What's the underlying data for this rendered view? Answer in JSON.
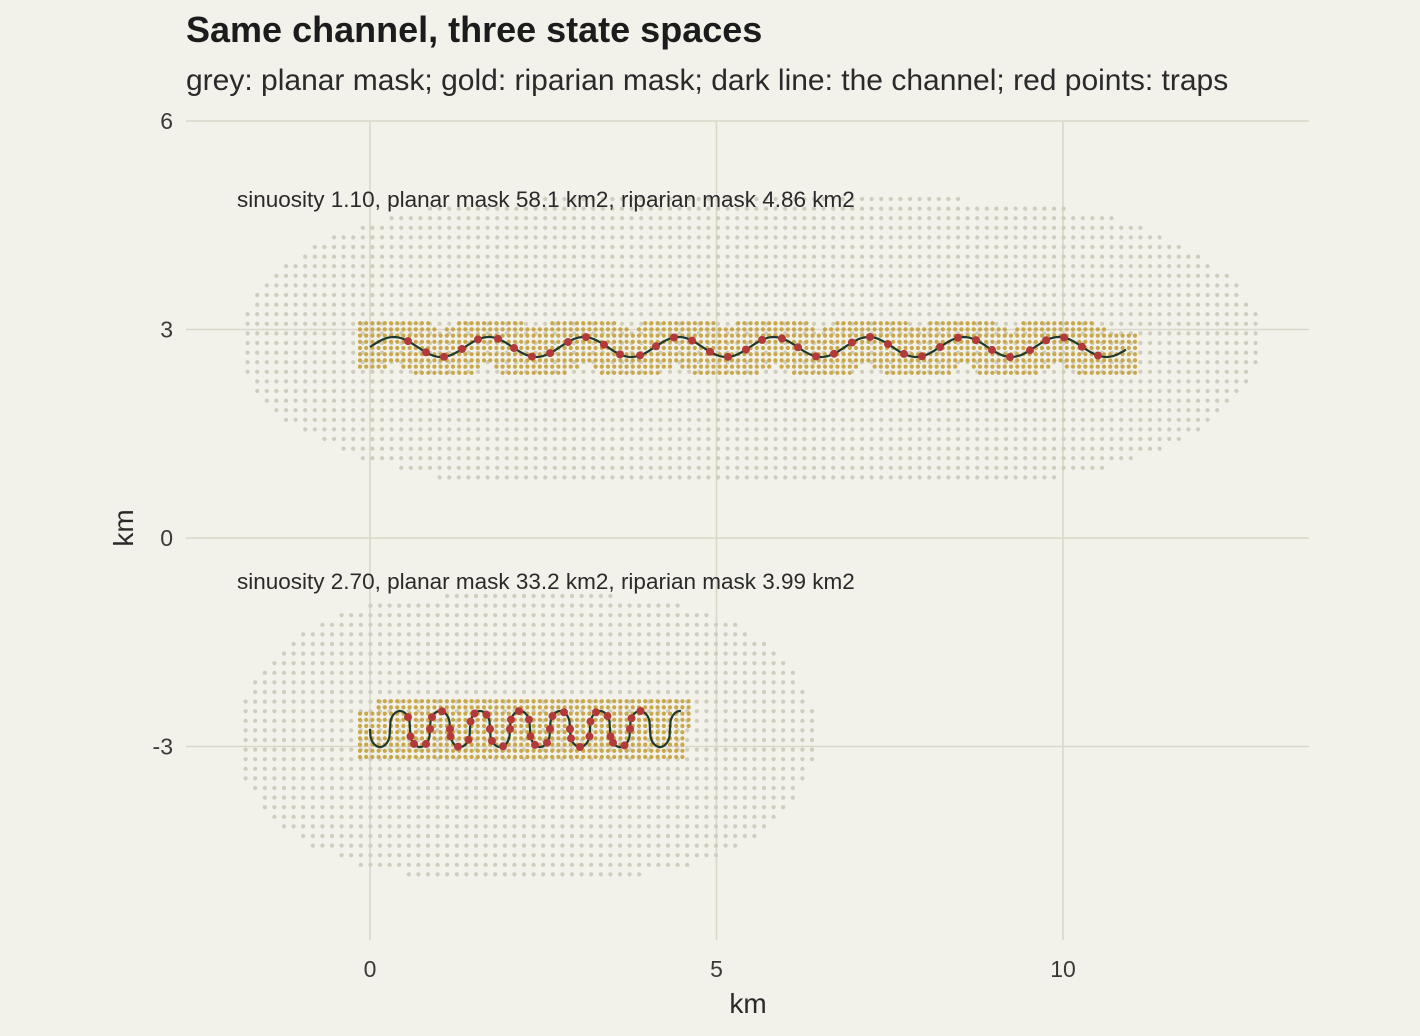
{
  "chart_data": {
    "type": "scatter",
    "title": "Same channel, three state spaces",
    "subtitle": "grey: planar mask; gold: riparian mask; dark line: the channel; red points: traps",
    "xlabel": "km",
    "ylabel": "km",
    "xlim": [
      -2.6,
      13.6
    ],
    "ylim": [
      -5.8,
      6.2
    ],
    "x_ticks": [
      0,
      5,
      10
    ],
    "y_ticks": [
      6,
      3,
      0,
      -3
    ],
    "x_tick_labels": [
      "0",
      "5",
      "10"
    ],
    "y_tick_labels": [
      "6",
      "3",
      "0",
      "-3"
    ],
    "grid": true,
    "colors": {
      "background": "#f2f1ea",
      "grid": "#d9d8c8",
      "planar_mask": "#cfcdbe",
      "riparian_mask": "#c8a84a",
      "channel": "#1f3a2c",
      "traps": "#b23a3a"
    },
    "panels": [
      {
        "annotation": "sinuosity 1.10, planar mask 58.1 km2, riparian mask 4.86 km2",
        "sinuosity": 1.1,
        "planar_mask_km2": 58.1,
        "riparian_mask_km2": 4.86,
        "channel": {
          "x_start": 0,
          "x_end": 10.9,
          "y_center": 2.75,
          "amplitude": 0.14,
          "wavelength": 1.37
        },
        "traps": {
          "x_start": 0.55,
          "x_end": 10.5,
          "count": 40
        }
      },
      {
        "annotation": "sinuosity 2.70, planar mask 33.2 km2, riparian mask 3.99 km2",
        "sinuosity": 2.7,
        "planar_mask_km2": 33.2,
        "riparian_mask_km2": 3.99,
        "channel": {
          "x_start": 0,
          "x_end": 4.5,
          "y_center": -2.75,
          "amplitude": 0.26,
          "wavelength": 0.58
        },
        "traps": {
          "x_start": 0.55,
          "x_end": 3.9,
          "count": 40
        }
      }
    ]
  }
}
